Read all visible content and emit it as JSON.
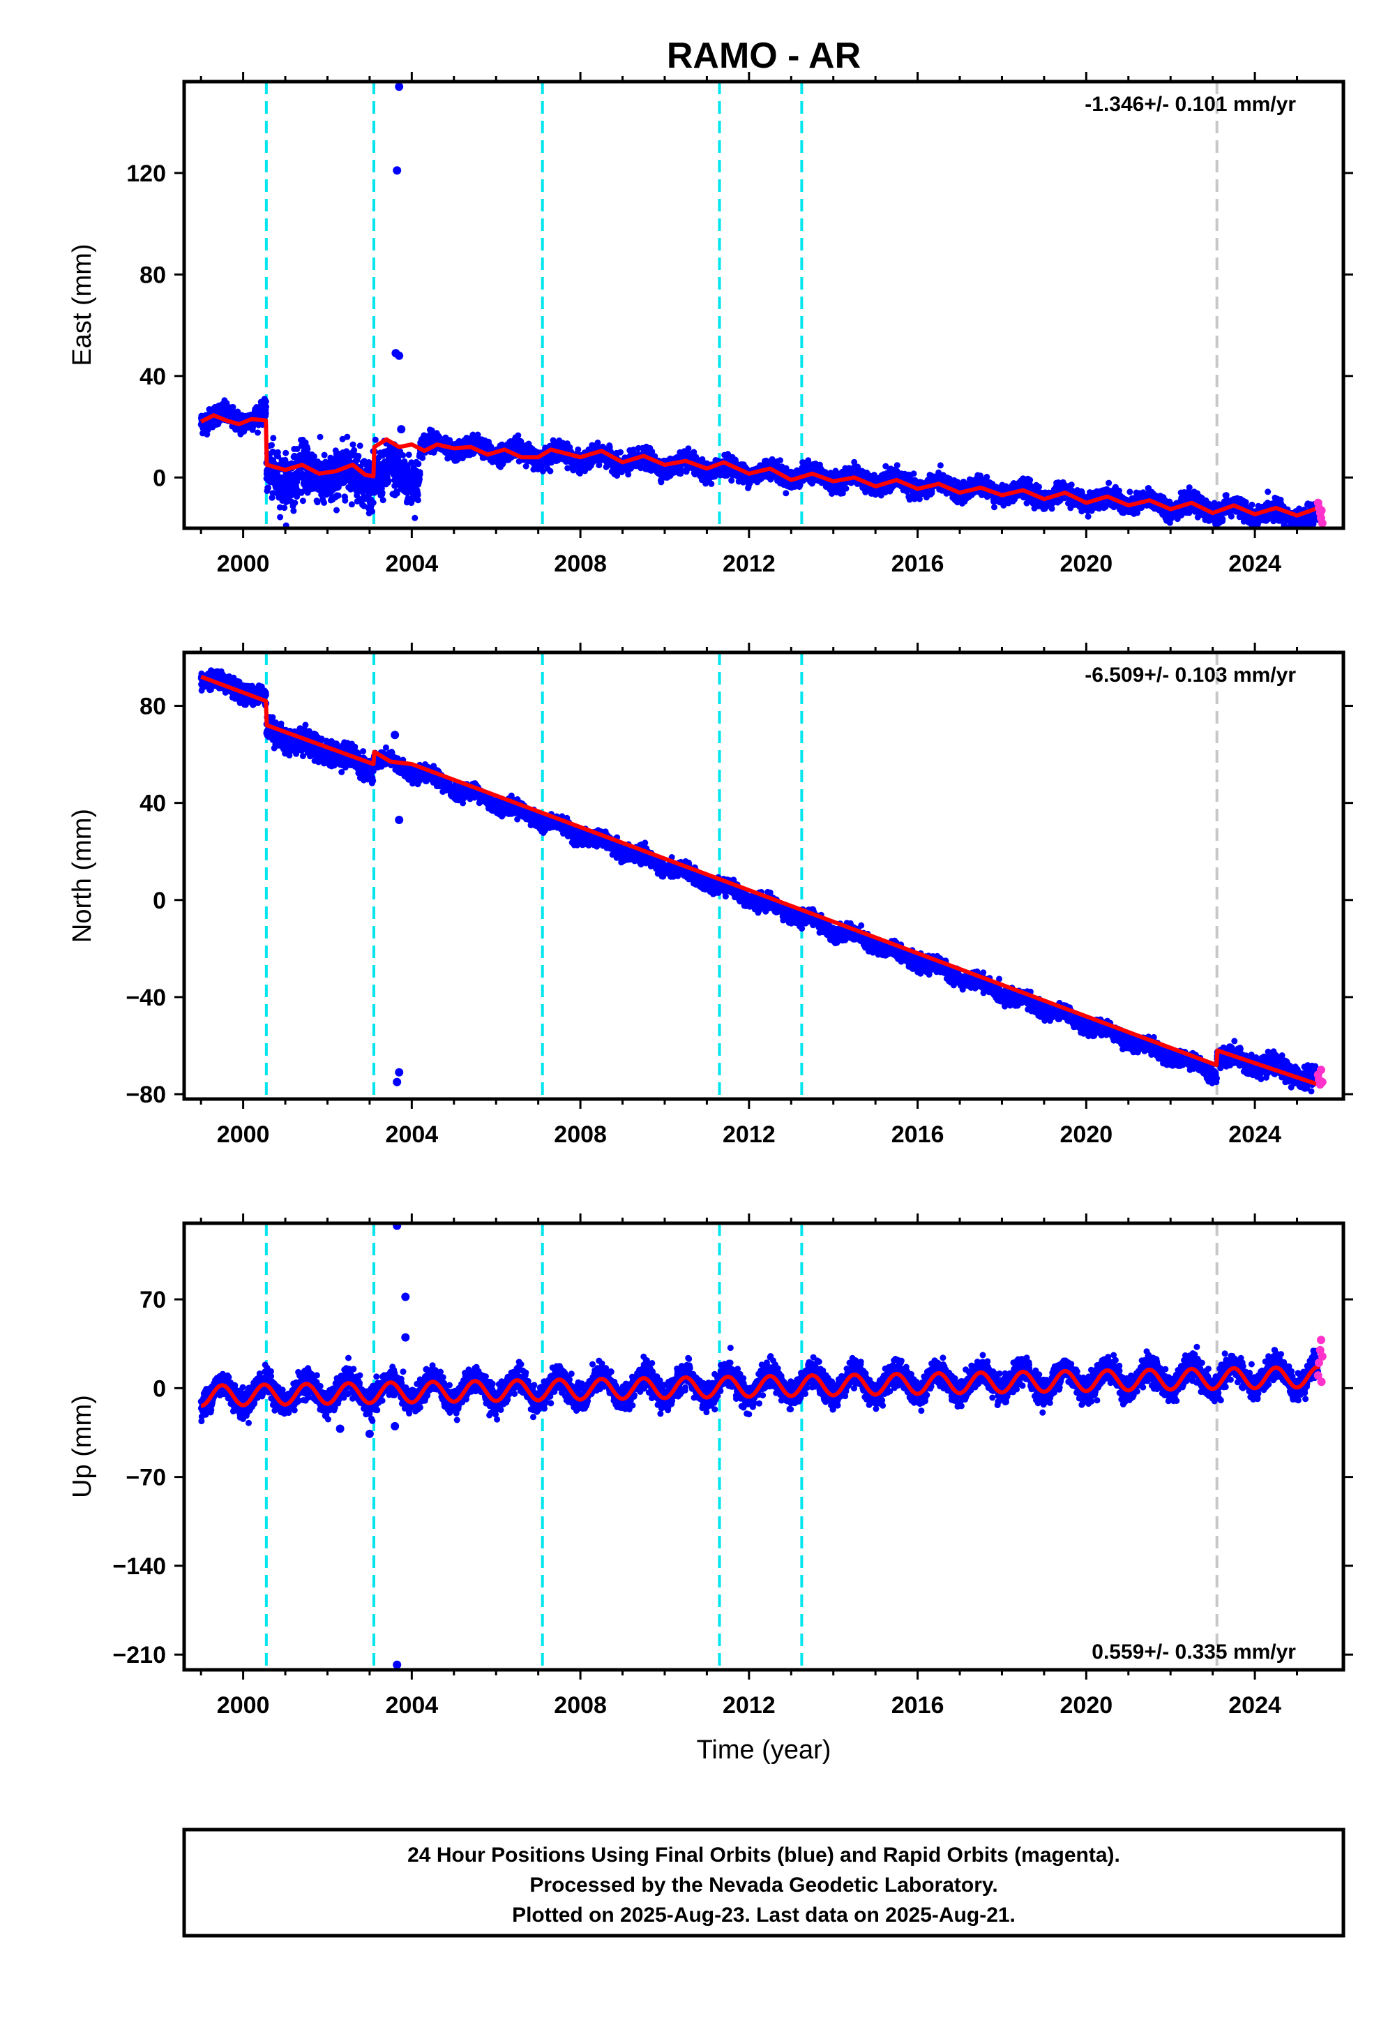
{
  "title": "RAMO - AR",
  "xlabel": "Time (year)",
  "colors": {
    "final": "#0000ff",
    "rapid": "#ff33cc",
    "model": "#ff0000",
    "equipment_change": "#00e5ee",
    "earthquake": "#c8c8c8"
  },
  "footer": {
    "line1": "24 Hour Positions Using Final Orbits (blue) and Rapid Orbits (magenta).",
    "line2": "Processed by the Nevada Geodetic Laboratory.",
    "line3": "Plotted on 2025-Aug-23. Last data on 2025-Aug-21."
  },
  "chart_data": [
    {
      "type": "scatter",
      "ylabel": "East (mm)",
      "rate_label": "-1.346+/- 0.101 mm/yr",
      "xlim": [
        1998.6,
        2026.1
      ],
      "ylim": [
        -20,
        156
      ],
      "yticks": [
        0,
        40,
        80,
        120
      ],
      "xticks": [
        2000,
        2004,
        2008,
        2012,
        2016,
        2020,
        2024
      ],
      "equipment_changes": [
        2000.55,
        2003.1,
        2007.1,
        2011.3,
        2013.25
      ],
      "earthquakes": [
        2023.1
      ],
      "series": [
        {
          "name": "Final Orbits",
          "segments": [
            {
              "x0": 1999.0,
              "x1": 2000.55,
              "mean": 23.5,
              "trend": 0,
              "amp": 2.0,
              "noise": 2.0
            },
            {
              "x0": 2000.55,
              "x1": 2004.2,
              "mean": 1.0,
              "trend": 0,
              "amp": 3.0,
              "noise": 5.0
            },
            {
              "x0": 2004.2,
              "x1": 2025.5,
              "mean": 13.0,
              "trend": -1.346,
              "amp": 2.0,
              "noise": 1.8
            }
          ],
          "outliers": [
            [
              2003.7,
              154
            ],
            [
              2003.65,
              121
            ],
            [
              2003.62,
              49
            ],
            [
              2003.7,
              48
            ],
            [
              2003.75,
              19
            ],
            [
              2003.0,
              -12
            ]
          ]
        },
        {
          "name": "Rapid Orbits",
          "points": [
            [
              2025.5,
              -10
            ],
            [
              2025.52,
              -12
            ],
            [
              2025.55,
              -14
            ],
            [
              2025.57,
              -16
            ],
            [
              2025.6,
              -18
            ],
            [
              2025.58,
              -13
            ]
          ]
        }
      ],
      "model": [
        [
          1999.0,
          22
        ],
        [
          1999.3,
          24.5
        ],
        [
          1999.6,
          22.5
        ],
        [
          1999.9,
          21
        ],
        [
          2000.2,
          23
        ],
        [
          2000.54,
          22.5
        ],
        [
          2000.56,
          5
        ],
        [
          2001.0,
          3
        ],
        [
          2001.4,
          5
        ],
        [
          2001.8,
          1.5
        ],
        [
          2002.2,
          2.5
        ],
        [
          2002.6,
          5
        ],
        [
          2002.9,
          1
        ],
        [
          2003.09,
          0.5
        ],
        [
          2003.11,
          12
        ],
        [
          2003.4,
          15
        ],
        [
          2003.7,
          12
        ],
        [
          2004.0,
          13
        ],
        [
          2004.3,
          10.5
        ],
        [
          2004.6,
          13
        ],
        [
          2005.0,
          11.5
        ],
        [
          2005.4,
          12
        ],
        [
          2005.8,
          9
        ],
        [
          2006.2,
          11
        ],
        [
          2006.6,
          8
        ],
        [
          2007.0,
          8
        ],
        [
          2007.3,
          11
        ],
        [
          2008.0,
          8
        ],
        [
          2008.5,
          10.5
        ],
        [
          2009.0,
          6
        ],
        [
          2009.5,
          8.5
        ],
        [
          2010.0,
          5
        ],
        [
          2010.5,
          6.5
        ],
        [
          2011.0,
          3.5
        ],
        [
          2011.4,
          6
        ],
        [
          2012.0,
          1.5
        ],
        [
          2012.5,
          3.5
        ],
        [
          2013.0,
          -1
        ],
        [
          2013.5,
          1.5
        ],
        [
          2014.0,
          -1.5
        ],
        [
          2014.5,
          0
        ],
        [
          2015.0,
          -3.5
        ],
        [
          2015.5,
          -1
        ],
        [
          2016.0,
          -4.5
        ],
        [
          2016.5,
          -2.5
        ],
        [
          2017.0,
          -6
        ],
        [
          2017.5,
          -4
        ],
        [
          2018.0,
          -7
        ],
        [
          2018.5,
          -5
        ],
        [
          2019.0,
          -8.5
        ],
        [
          2019.5,
          -6
        ],
        [
          2020.0,
          -10
        ],
        [
          2020.5,
          -7.5
        ],
        [
          2021.0,
          -11
        ],
        [
          2021.5,
          -9
        ],
        [
          2022.0,
          -12.5
        ],
        [
          2022.5,
          -10
        ],
        [
          2023.0,
          -14
        ],
        [
          2023.5,
          -11
        ],
        [
          2024.0,
          -14.5
        ],
        [
          2024.5,
          -12
        ],
        [
          2025.0,
          -15
        ],
        [
          2025.5,
          -12
        ]
      ]
    },
    {
      "type": "scatter",
      "ylabel": "North (mm)",
      "rate_label": "-6.509+/- 0.103 mm/yr",
      "xlim": [
        1998.6,
        2026.1
      ],
      "ylim": [
        -82,
        102
      ],
      "yticks": [
        -80,
        -40,
        0,
        40,
        80
      ],
      "xticks": [
        2000,
        2004,
        2008,
        2012,
        2016,
        2020,
        2024
      ],
      "equipment_changes": [
        2000.55,
        2003.1,
        2007.1,
        2011.3,
        2013.25
      ],
      "earthquakes": [
        2023.1
      ],
      "series": [
        {
          "name": "Final Orbits",
          "segments": [
            {
              "x0": 1999.0,
              "x1": 2000.55,
              "mean": 92,
              "trend": -6.0,
              "amp": 1.5,
              "noise": 1.8
            },
            {
              "x0": 2000.55,
              "x1": 2003.1,
              "mean": 70,
              "trend": -6.0,
              "amp": 1.5,
              "noise": 2.5
            },
            {
              "x0": 2003.1,
              "x1": 2023.1,
              "mean": 59,
              "trend": -6.509,
              "amp": 1.5,
              "noise": 1.5
            },
            {
              "x0": 2023.1,
              "x1": 2025.5,
              "mean": -64,
              "trend": -4.0,
              "amp": 1.5,
              "noise": 2.0
            }
          ],
          "outliers": [
            [
              2003.7,
              -71
            ],
            [
              2003.65,
              -75
            ],
            [
              2003.7,
              33
            ],
            [
              2003.6,
              68
            ]
          ]
        },
        {
          "name": "Rapid Orbits",
          "points": [
            [
              2025.5,
              -72
            ],
            [
              2025.52,
              -74
            ],
            [
              2025.55,
              -76
            ],
            [
              2025.57,
              -70
            ],
            [
              2025.6,
              -75
            ]
          ]
        }
      ],
      "model": [
        [
          1999.0,
          92
        ],
        [
          2000.54,
          82
        ],
        [
          2000.56,
          72
        ],
        [
          2003.09,
          56
        ],
        [
          2003.11,
          61
        ],
        [
          2003.5,
          57
        ],
        [
          2004.0,
          56
        ],
        [
          2023.09,
          -68
        ],
        [
          2023.11,
          -62
        ],
        [
          2025.5,
          -76
        ]
      ]
    },
    {
      "type": "scatter",
      "ylabel": "Up (mm)",
      "rate_label": "0.559+/- 0.335 mm/yr",
      "xlim": [
        1998.6,
        2026.1
      ],
      "ylim": [
        -222,
        130
      ],
      "yticks": [
        -210,
        -140,
        -70,
        0,
        70
      ],
      "xticks": [
        2000,
        2004,
        2008,
        2012,
        2016,
        2020,
        2024
      ],
      "equipment_changes": [
        2000.55,
        2003.1,
        2007.1,
        2011.3,
        2013.25
      ],
      "earthquakes": [
        2023.1
      ],
      "series": [
        {
          "name": "Final Orbits",
          "segments": [
            {
              "x0": 1999.0,
              "x1": 2025.5,
              "mean": -5,
              "trend": 0.559,
              "amp": 9.0,
              "noise": 5.0
            }
          ],
          "outliers": [
            [
              2003.65,
              128
            ],
            [
              2003.85,
              72
            ],
            [
              2003.85,
              40
            ],
            [
              2003.65,
              -218
            ],
            [
              2003.0,
              -36
            ],
            [
              2002.3,
              -32
            ],
            [
              2003.6,
              -30
            ]
          ]
        },
        {
          "name": "Rapid Orbits",
          "points": [
            [
              2025.5,
              10
            ],
            [
              2025.52,
              20
            ],
            [
              2025.55,
              30
            ],
            [
              2025.57,
              38
            ],
            [
              2025.6,
              25
            ],
            [
              2025.58,
              5
            ]
          ]
        }
      ],
      "model": "seasonal"
    }
  ]
}
